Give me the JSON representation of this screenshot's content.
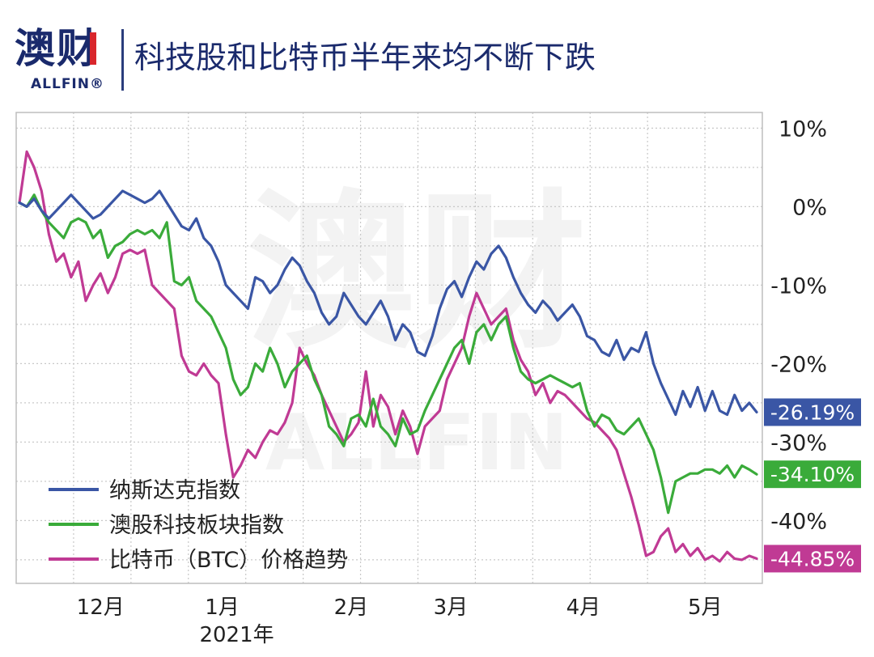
{
  "brand": {
    "logo_text": "澳财",
    "logo_subtext": "ALLFIN®"
  },
  "title": "科技股和比特币半年来均不断下跌",
  "chart_data": {
    "type": "line",
    "title": "科技股和比特币半年来均不断下跌",
    "watermark": "澳财 ALLFIN",
    "grid": true,
    "legend_position": "bottom-left",
    "ylim": [
      -48,
      12
    ],
    "y_ticks": [
      "10%",
      "0%",
      "-10%",
      "-20%",
      "-30%",
      "-40%"
    ],
    "y_tick_values": [
      10,
      0,
      -10,
      -20,
      -30,
      -40
    ],
    "x_labels": [
      "12月",
      "1月",
      "2月",
      "3月",
      "4月",
      "5月"
    ],
    "x_sublabel": "2021年",
    "x_range": [
      0,
      100
    ],
    "x_label_positions": [
      11,
      27.5,
      45,
      58.5,
      76.5,
      93
    ],
    "series": [
      {
        "name": "纳斯达克指数",
        "color": "#3a56a5",
        "end_label": "-26.19%",
        "x": [
          0,
          1,
          2,
          3,
          4,
          5,
          6,
          7,
          8,
          9,
          10,
          11,
          12,
          13,
          14,
          15,
          16,
          17,
          18,
          19,
          20,
          21,
          22,
          23,
          24,
          25,
          26,
          27,
          28,
          29,
          30,
          31,
          32,
          33,
          34,
          35,
          36,
          37,
          38,
          39,
          40,
          41,
          42,
          43,
          44,
          45,
          46,
          47,
          48,
          49,
          50,
          51,
          52,
          53,
          54,
          55,
          56,
          57,
          58,
          59,
          60,
          61,
          62,
          63,
          64,
          65,
          66,
          67,
          68,
          69,
          70,
          71,
          72,
          73,
          74,
          75,
          76,
          77,
          78,
          79,
          80,
          81,
          82,
          83,
          84,
          85,
          86,
          87,
          88,
          89,
          90,
          91,
          92,
          93,
          94,
          95,
          96,
          97,
          98,
          99,
          100
        ],
        "values": [
          0.5,
          0,
          1,
          -0.5,
          -1.5,
          -0.5,
          0.5,
          1.5,
          0.5,
          -0.5,
          -1.5,
          -1,
          0,
          1,
          2,
          1.5,
          1,
          0.5,
          1,
          2,
          0.5,
          -1,
          -2.5,
          -3,
          -1.5,
          -4,
          -5,
          -7,
          -10,
          -11,
          -12,
          -13,
          -9,
          -9.5,
          -11,
          -10,
          -8,
          -6.5,
          -7.5,
          -9.5,
          -11,
          -13.5,
          -15,
          -14,
          -11,
          -12.5,
          -14,
          -15,
          -13.5,
          -12,
          -14,
          -17,
          -15,
          -16,
          -18.5,
          -19,
          -16.5,
          -13,
          -10.5,
          -9.5,
          -11.5,
          -9,
          -7,
          -8,
          -6,
          -5,
          -6.5,
          -9,
          -11,
          -12.5,
          -13.5,
          -12,
          -13,
          -14.5,
          -13.5,
          -12.5,
          -14,
          -16.5,
          -17,
          -18.5,
          -19,
          -17,
          -19.5,
          -18,
          -18.5,
          -16,
          -20,
          -22.5,
          -24.5,
          -26.5,
          -23.5,
          -25.5,
          -23,
          -26,
          -23.5,
          -26,
          -26.5,
          -24,
          -26,
          -25,
          -26.19
        ]
      },
      {
        "name": "澳股科技板块指数",
        "color": "#3aab3a",
        "end_label": "-34.10%",
        "x": [
          0,
          1,
          2,
          3,
          4,
          5,
          6,
          7,
          8,
          9,
          10,
          11,
          12,
          13,
          14,
          15,
          16,
          17,
          18,
          19,
          20,
          21,
          22,
          23,
          24,
          25,
          26,
          27,
          28,
          29,
          30,
          31,
          32,
          33,
          34,
          35,
          36,
          37,
          38,
          39,
          40,
          41,
          42,
          43,
          44,
          45,
          46,
          47,
          48,
          49,
          50,
          51,
          52,
          53,
          54,
          55,
          56,
          57,
          58,
          59,
          60,
          61,
          62,
          63,
          64,
          65,
          66,
          67,
          68,
          69,
          70,
          71,
          72,
          73,
          74,
          75,
          76,
          77,
          78,
          79,
          80,
          81,
          82,
          83,
          84,
          85,
          86,
          87,
          88,
          89,
          90,
          91,
          92,
          93,
          94,
          95,
          96,
          97,
          98,
          99,
          100
        ],
        "values": [
          0.5,
          0,
          1.5,
          -0.5,
          -2,
          -3,
          -4,
          -2,
          -1.5,
          -2,
          -4,
          -3,
          -6.5,
          -5,
          -4.5,
          -3.5,
          -3,
          -3.5,
          -3,
          -4,
          -2,
          -9.5,
          -10,
          -9,
          -12,
          -13,
          -14,
          -16,
          -18,
          -22,
          -24,
          -23,
          -20,
          -21,
          -18,
          -20,
          -23,
          -21,
          -20,
          -19,
          -22,
          -24,
          -28,
          -29,
          -30.5,
          -27,
          -26.5,
          -28,
          -24.5,
          -28,
          -29,
          -30.5,
          -27,
          -29,
          -28.5,
          -26,
          -24,
          -22,
          -20,
          -18,
          -17,
          -20,
          -16,
          -15,
          -17,
          -15,
          -14,
          -18,
          -21,
          -22,
          -22.5,
          -22,
          -21.5,
          -22,
          -22.5,
          -23,
          -22.5,
          -26,
          -28,
          -26.5,
          -27,
          -28.5,
          -29,
          -28,
          -27,
          -29,
          -31,
          -34.5,
          -39,
          -35,
          -34.5,
          -34,
          -34,
          -33.5,
          -33.5,
          -34,
          -33,
          -34.5,
          -33,
          -33.5,
          -34.1
        ]
      },
      {
        "name": "比特币（BTC）价格趋势",
        "color": "#c03a94",
        "end_label": "-44.85%",
        "x": [
          0,
          1,
          2,
          3,
          4,
          5,
          6,
          7,
          8,
          9,
          10,
          11,
          12,
          13,
          14,
          15,
          16,
          17,
          18,
          19,
          20,
          21,
          22,
          23,
          24,
          25,
          26,
          27,
          28,
          29,
          30,
          31,
          32,
          33,
          34,
          35,
          36,
          37,
          38,
          39,
          40,
          41,
          42,
          43,
          44,
          45,
          46,
          47,
          48,
          49,
          50,
          51,
          52,
          53,
          54,
          55,
          56,
          57,
          58,
          59,
          60,
          61,
          62,
          63,
          64,
          65,
          66,
          67,
          68,
          69,
          70,
          71,
          72,
          73,
          74,
          75,
          76,
          77,
          78,
          79,
          80,
          81,
          82,
          83,
          84,
          85,
          86,
          87,
          88,
          89,
          90,
          91,
          92,
          93,
          94,
          95,
          96,
          97,
          98,
          99,
          100
        ],
        "values": [
          0.5,
          7,
          5,
          2,
          -3.5,
          -7,
          -6,
          -9,
          -7,
          -12,
          -10,
          -8.5,
          -11,
          -9,
          -6,
          -5.5,
          -6,
          -5.5,
          -10,
          -11,
          -12,
          -13,
          -19,
          -21,
          -21.5,
          -20,
          -21.5,
          -22.5,
          -29,
          -34.5,
          -33,
          -31,
          -32,
          -30,
          -28.5,
          -29,
          -27.5,
          -25,
          -18,
          -20,
          -21.5,
          -24,
          -26,
          -28,
          -30,
          -29,
          -27.5,
          -21,
          -28,
          -24,
          -25.5,
          -29,
          -26,
          -28,
          -31.5,
          -28,
          -27,
          -26,
          -22,
          -20,
          -18,
          -14,
          -11,
          -13,
          -15,
          -14,
          -13,
          -17,
          -19.5,
          -21,
          -24,
          -22.5,
          -25,
          -23.5,
          -24,
          -25,
          -26,
          -27,
          -27.5,
          -28.5,
          -29.5,
          -31,
          -34,
          -37,
          -40.5,
          -44.5,
          -44,
          -42,
          -41,
          -44,
          -43,
          -44.5,
          -43.5,
          -45,
          -44.5,
          -45.2,
          -44,
          -44.85,
          -45,
          -44.5,
          -44.85
        ]
      }
    ]
  }
}
